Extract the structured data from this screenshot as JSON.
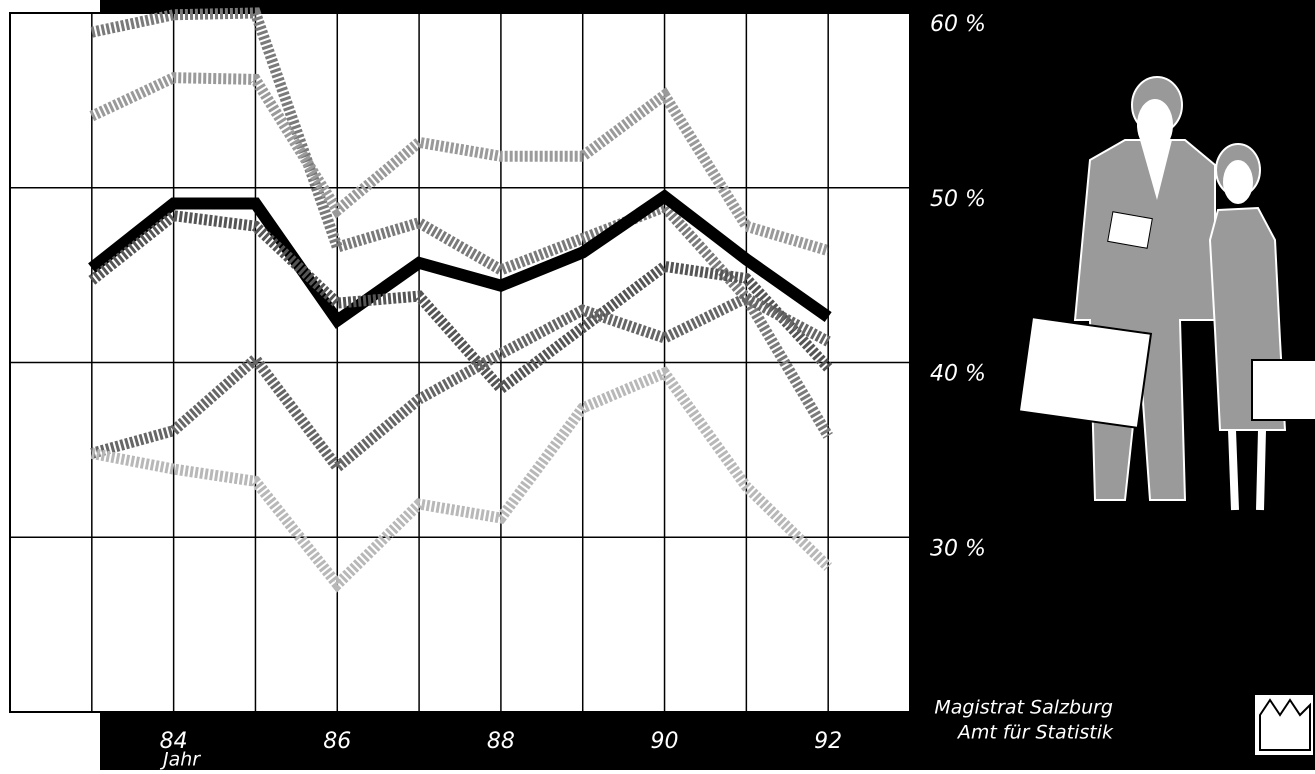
{
  "chart_data": {
    "type": "line",
    "xlabel": "Jahr",
    "x": [
      83,
      84,
      85,
      86,
      87,
      88,
      89,
      90,
      91,
      92
    ],
    "xlim": [
      82,
      93
    ],
    "xticks": [
      84,
      86,
      88,
      90,
      92
    ],
    "ylim": [
      20,
      60
    ],
    "yticks": [
      {
        "value": 30,
        "label": "30 %"
      },
      {
        "value": 40,
        "label": "40 %"
      },
      {
        "value": 50,
        "label": "50 %"
      },
      {
        "value": 60,
        "label": "60 %"
      }
    ],
    "grid": true,
    "series": [
      {
        "color": "#7a7a7a",
        "values": [
          58.9,
          59.9,
          60,
          46.6,
          48.0,
          45.3,
          47.1,
          48.9,
          43.7,
          35.8
        ]
      },
      {
        "color": "#9a9a9a",
        "values": [
          54.1,
          56.3,
          56.2,
          48.7,
          52.6,
          51.8,
          51.8,
          55.3,
          47.8,
          46.4
        ]
      },
      {
        "color": "#000000",
        "values": [
          45.4,
          49.1,
          49.1,
          42.4,
          45.7,
          44.4,
          46.3,
          49.5,
          45.9,
          42.6
        ]
      },
      {
        "color": "#555555",
        "values": [
          44.7,
          48.4,
          47.8,
          43.4,
          43.8,
          38.5,
          42.0,
          45.5,
          44.8,
          39.7
        ]
      },
      {
        "color": "#666666",
        "values": [
          34.8,
          36.1,
          40.2,
          34.0,
          37.9,
          40.5,
          43.0,
          41.4,
          43.7,
          41.2
        ]
      },
      {
        "color": "#b8b8b8",
        "values": [
          34.8,
          33.9,
          33.2,
          27.3,
          31.9,
          31.1,
          37.4,
          39.4,
          32.9,
          28.3
        ]
      }
    ],
    "annotations": [
      "Magistrat Salzburg",
      "Amt für Statistik"
    ]
  }
}
